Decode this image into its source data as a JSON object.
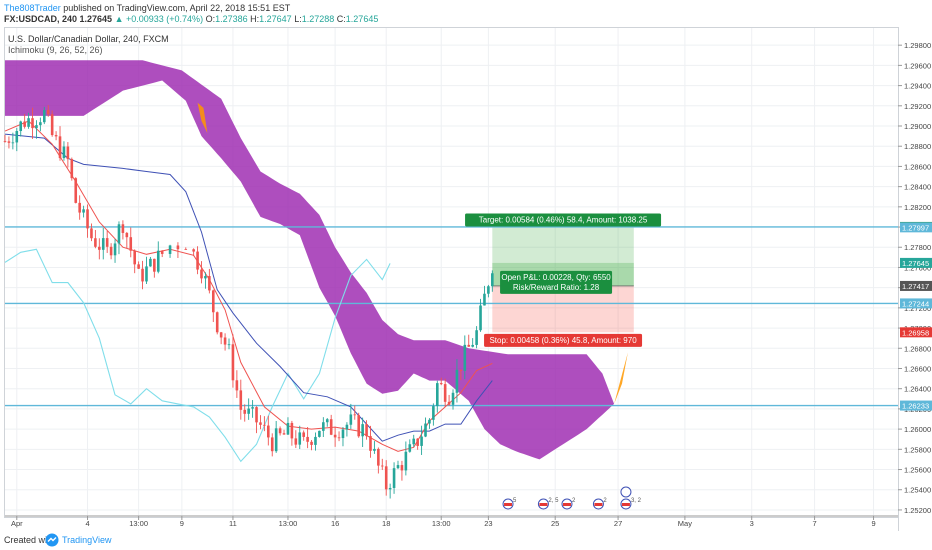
{
  "header": {
    "author": "The808Trader",
    "published": "published on TradingView.com, April 22, 2018 15:51 EST",
    "symbol": "FX:USDCAD, 240",
    "last_price": "1.27645",
    "change": "▲ +0.00933 (+0.74%)",
    "ohlc": [
      {
        "label": "O:",
        "value": "1.27386"
      },
      {
        "label": "H:",
        "value": "1.27647"
      },
      {
        "label": "L:",
        "value": "1.27288"
      },
      {
        "label": "C:",
        "value": "1.27645"
      }
    ]
  },
  "legend": {
    "title": "U.S. Dollar/Canadian Dollar, 240, FXCM",
    "indicator": "Ichimoku (9, 26, 52, 26)"
  },
  "footer": {
    "created": "Created with",
    "brand": "TradingView"
  },
  "colors": {
    "up": "#26a69a",
    "down": "#ef5350",
    "cloud": "#9c27b0",
    "cloud_alt": "#ff9800",
    "tenkan": "#ef5350",
    "kijun": "#3f51b5",
    "chikou": "#80deea",
    "hline": "#5fb8d9",
    "target": "#4caf50",
    "stop": "#f44336",
    "text": "#333333"
  },
  "chart_data": {
    "type": "candlestick",
    "title": "U.S. Dollar/Canadian Dollar, 240, FXCM",
    "interval": "240",
    "x_ticks": [
      "Apr",
      "4",
      "13:00",
      "9",
      "11",
      "13:00",
      "16",
      "18",
      "13:00",
      "23",
      "25",
      "27",
      "May",
      "3",
      "7",
      "9"
    ],
    "y_ticks": [
      "1.29800",
      "1.29600",
      "1.29400",
      "1.29200",
      "1.29000",
      "1.28800",
      "1.28600",
      "1.28400",
      "1.28200",
      "1.28000",
      "1.27800",
      "1.27600",
      "1.27400",
      "1.27200",
      "1.27000",
      "1.26800",
      "1.26600",
      "1.26400",
      "1.26200",
      "1.26000",
      "1.25800",
      "1.25600",
      "1.25400",
      "1.25200"
    ],
    "ylim": [
      1.2514,
      1.2997
    ],
    "n_bars": 124,
    "candle_count": 84,
    "close_path": [
      [
        0,
        1.2885
      ],
      [
        5,
        1.2905
      ],
      [
        10,
        1.2912
      ],
      [
        12,
        1.289
      ],
      [
        16,
        1.2865
      ],
      [
        18,
        1.2825
      ],
      [
        22,
        1.279
      ],
      [
        26,
        1.2775
      ],
      [
        30,
        1.2805
      ],
      [
        34,
        1.275
      ],
      [
        38,
        1.2765
      ],
      [
        42,
        1.2782
      ],
      [
        46,
        1.2786
      ],
      [
        50,
        1.276
      ],
      [
        54,
        1.2705
      ],
      [
        57,
        1.2675
      ],
      [
        60,
        1.262
      ],
      [
        64,
        1.2608
      ],
      [
        68,
        1.2588
      ],
      [
        72,
        1.2596
      ],
      [
        76,
        1.2585
      ],
      [
        80,
        1.2602
      ],
      [
        84,
        1.26
      ],
      [
        88,
        1.2606
      ],
      [
        92,
        1.2598
      ],
      [
        95,
        1.2562
      ],
      [
        97,
        1.2544
      ],
      [
        100,
        1.2562
      ],
      [
        104,
        1.2582
      ],
      [
        108,
        1.261
      ],
      [
        110,
        1.2644
      ],
      [
        113,
        1.2635
      ],
      [
        116,
        1.2665
      ],
      [
        118,
        1.268
      ],
      [
        120,
        1.2695
      ],
      [
        122,
        1.273
      ],
      [
        124,
        1.2764
      ]
    ],
    "horizontal_lines": [
      {
        "price": 1.28001,
        "label": "1.28001"
      },
      {
        "price": 1.27244,
        "label": "1.27244"
      },
      {
        "price": 1.26233,
        "label": "1.26233"
      }
    ],
    "price_labels": [
      {
        "price": 1.28001,
        "text": "1.28001",
        "bg": "#1b8f3f"
      },
      {
        "price": 1.27997,
        "text": "1.27997",
        "bg": "#5fb8d9"
      },
      {
        "price": 1.27645,
        "text": "1.27645",
        "bg": "#26a69a"
      },
      {
        "price": 1.27417,
        "text": "1.27417",
        "bg": "#555555"
      },
      {
        "price": 1.27244,
        "text": "1.27244",
        "bg": "#5fb8d9"
      },
      {
        "price": 1.26958,
        "text": "1.26958",
        "bg": "#e53935"
      },
      {
        "price": 1.26233,
        "text": "1.26233",
        "bg": "#5fb8d9"
      }
    ],
    "position": {
      "entry": 1.27417,
      "target": 1.28001,
      "stop": 1.26958,
      "current": 1.27645,
      "start_bar": 124,
      "end_bar": 160,
      "target_label": "Target: 0.00584 (0.46%) 58.4, Amount: 1038.25",
      "stop_label": "Stop: 0.00458 (0.36%) 45.8, Amount: 970",
      "pnl_label": "Open P&L: 0.00228, Qty: 6550",
      "rr_label": "Risk/Reward Ratio: 1.28"
    },
    "cloud_a": [
      [
        0,
        1.2965
      ],
      [
        20,
        1.2965
      ],
      [
        35,
        1.2965
      ],
      [
        45,
        1.2955
      ],
      [
        55,
        1.2927
      ],
      [
        60,
        1.2888
      ],
      [
        65,
        1.2855
      ],
      [
        70,
        1.2843
      ],
      [
        75,
        1.2833
      ],
      [
        80,
        1.2812
      ],
      [
        84,
        1.278
      ],
      [
        88,
        1.2755
      ],
      [
        92,
        1.2735
      ],
      [
        96,
        1.2708
      ],
      [
        100,
        1.2694
      ],
      [
        104,
        1.2688
      ],
      [
        108,
        1.2688
      ],
      [
        112,
        1.2688
      ],
      [
        118,
        1.268
      ],
      [
        128,
        1.2674
      ],
      [
        140,
        1.2674
      ],
      [
        148,
        1.2674
      ],
      [
        152,
        1.2655
      ],
      [
        155,
        1.2625
      ]
    ],
    "cloud_b": [
      [
        0,
        1.291
      ],
      [
        20,
        1.291
      ],
      [
        30,
        1.2935
      ],
      [
        40,
        1.2945
      ],
      [
        46,
        1.2925
      ],
      [
        50,
        1.289
      ],
      [
        55,
        1.2868
      ],
      [
        60,
        1.2845
      ],
      [
        65,
        1.281
      ],
      [
        70,
        1.2803
      ],
      [
        75,
        1.2792
      ],
      [
        80,
        1.274
      ],
      [
        84,
        1.2712
      ],
      [
        88,
        1.2675
      ],
      [
        92,
        1.2645
      ],
      [
        96,
        1.2635
      ],
      [
        100,
        1.2638
      ],
      [
        104,
        1.2655
      ],
      [
        108,
        1.2648
      ],
      [
        112,
        1.2648
      ],
      [
        118,
        1.2628
      ],
      [
        122,
        1.26
      ],
      [
        126,
        1.2585
      ],
      [
        130,
        1.2578
      ],
      [
        136,
        1.257
      ],
      [
        140,
        1.258
      ],
      [
        148,
        1.26
      ],
      [
        155,
        1.2625
      ]
    ],
    "tenkan_sen": [
      [
        0,
        1.2895
      ],
      [
        6,
        1.2905
      ],
      [
        12,
        1.2882
      ],
      [
        18,
        1.2845
      ],
      [
        24,
        1.2805
      ],
      [
        30,
        1.278
      ],
      [
        36,
        1.2773
      ],
      [
        42,
        1.2778
      ],
      [
        48,
        1.2772
      ],
      [
        52,
        1.2748
      ],
      [
        56,
        1.2718
      ],
      [
        60,
        1.2666
      ],
      [
        66,
        1.2622
      ],
      [
        72,
        1.2603
      ],
      [
        78,
        1.26
      ],
      [
        84,
        1.2602
      ],
      [
        90,
        1.2598
      ],
      [
        96,
        1.2585
      ],
      [
        100,
        1.2578
      ],
      [
        104,
        1.2582
      ],
      [
        108,
        1.2608
      ],
      [
        112,
        1.2622
      ],
      [
        116,
        1.2636
      ],
      [
        120,
        1.2658
      ],
      [
        124,
        1.2665
      ]
    ],
    "kijun_sen": [
      [
        0,
        1.2892
      ],
      [
        10,
        1.2888
      ],
      [
        16,
        1.2868
      ],
      [
        20,
        1.2862
      ],
      [
        30,
        1.2858
      ],
      [
        36,
        1.2855
      ],
      [
        42,
        1.2852
      ],
      [
        46,
        1.2835
      ],
      [
        50,
        1.2795
      ],
      [
        54,
        1.2738
      ],
      [
        58,
        1.2715
      ],
      [
        64,
        1.2685
      ],
      [
        70,
        1.2662
      ],
      [
        76,
        1.2636
      ],
      [
        82,
        1.2632
      ],
      [
        88,
        1.2622
      ],
      [
        92,
        1.2605
      ],
      [
        96,
        1.2588
      ],
      [
        100,
        1.2594
      ],
      [
        104,
        1.2598
      ],
      [
        108,
        1.2598
      ],
      [
        112,
        1.2605
      ],
      [
        116,
        1.2605
      ],
      [
        120,
        1.2628
      ],
      [
        124,
        1.2648
      ]
    ],
    "chikou_span": [
      [
        0,
        1.2765
      ],
      [
        4,
        1.2775
      ],
      [
        8,
        1.2778
      ],
      [
        12,
        1.2745
      ],
      [
        16,
        1.2745
      ],
      [
        20,
        1.2725
      ],
      [
        24,
        1.269
      ],
      [
        28,
        1.2634
      ],
      [
        32,
        1.2625
      ],
      [
        36,
        1.264
      ],
      [
        40,
        1.2628
      ],
      [
        44,
        1.2625
      ],
      [
        48,
        1.2622
      ],
      [
        52,
        1.2612
      ],
      [
        56,
        1.2592
      ],
      [
        60,
        1.2568
      ],
      [
        64,
        1.2585
      ],
      [
        68,
        1.2622
      ],
      [
        72,
        1.2655
      ],
      [
        76,
        1.263
      ],
      [
        80,
        1.2655
      ],
      [
        84,
        1.271
      ],
      [
        88,
        1.2752
      ],
      [
        92,
        1.2768
      ],
      [
        96,
        1.2748
      ],
      [
        98,
        1.2764
      ]
    ],
    "events": [
      {
        "bar": 128,
        "label": "5"
      },
      {
        "bar": 137,
        "label": "2, 5"
      },
      {
        "bar": 143,
        "label": "2"
      },
      {
        "bar": 151,
        "label": "2"
      },
      {
        "bar": 158,
        "label": "3, 2"
      }
    ]
  }
}
